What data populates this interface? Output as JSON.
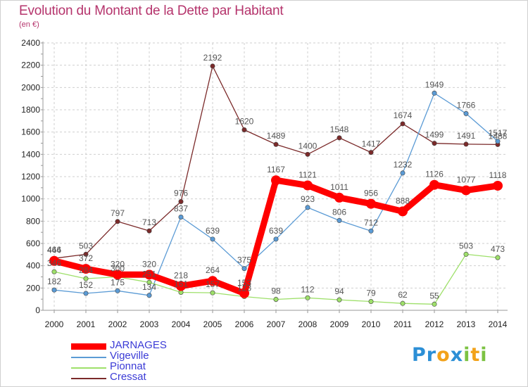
{
  "title": "Evolution du Montant de la Dette par Habitant",
  "subtitle": "(en €)",
  "brand": {
    "letters": [
      {
        "ch": "P",
        "color": "#2c8fd6"
      },
      {
        "ch": "r",
        "color": "#2c8fd6"
      },
      {
        "ch": "o",
        "color": "#f2a21a"
      },
      {
        "ch": "x",
        "color": "#2c8fd6"
      },
      {
        "ch": "i",
        "color": "#7cc242"
      },
      {
        "ch": "t",
        "color": "#f2a21a"
      },
      {
        "ch": "i",
        "color": "#7cc242"
      }
    ]
  },
  "chart_data": {
    "type": "line",
    "title": "Evolution du Montant de la Dette par Habitant",
    "subtitle": "(en €)",
    "x": [
      "2000",
      "2001",
      "2002",
      "2003",
      "2004",
      "2005",
      "2006",
      "2007",
      "2008",
      "2009",
      "2010",
      "2011",
      "2012",
      "2013",
      "2014"
    ],
    "ylim": [
      0,
      2400
    ],
    "yticks": [
      0,
      200,
      400,
      600,
      800,
      1000,
      1200,
      1400,
      1600,
      1800,
      2000,
      2200,
      2400
    ],
    "grid": true,
    "legend_position": "bottom-left",
    "series": [
      {
        "name": "JARNAGES",
        "color": "#ff0000",
        "values": [
          444,
          372,
          320,
          320,
          218,
          264,
          153,
          1167,
          1121,
          1011,
          956,
          888,
          1126,
          1077,
          1118
        ]
      },
      {
        "name": "Vigeville",
        "color": "#5b9bd5",
        "values": [
          182,
          152,
          175,
          134,
          837,
          639,
          375,
          639,
          923,
          806,
          712,
          1232,
          1949,
          1766,
          1517
        ]
      },
      {
        "name": "Pionnat",
        "color": "#9ee06a",
        "values": [
          346,
          284,
          300,
          251,
          161,
          157,
          123,
          98,
          112,
          94,
          79,
          62,
          55,
          503,
          473
        ]
      },
      {
        "name": "Cressat",
        "color": "#7b2a2a",
        "values": [
          466,
          503,
          797,
          713,
          976,
          2192,
          1620,
          1489,
          1400,
          1548,
          1417,
          1674,
          1499,
          1491,
          1488
        ]
      }
    ]
  }
}
